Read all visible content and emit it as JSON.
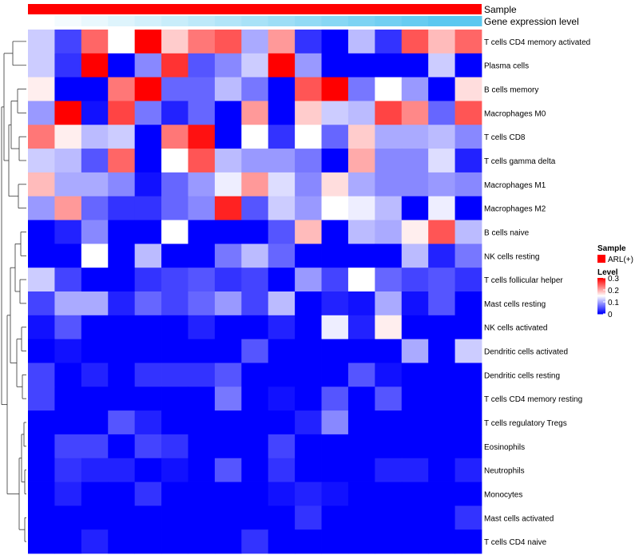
{
  "chart_data": {
    "type": "heatmap",
    "annotations": [
      {
        "name": "Sample",
        "color": "#ff0000"
      },
      {
        "name": "Gene expression level"
      }
    ],
    "annotation_gradient": [
      "#ffffff",
      "#5bc8f0"
    ],
    "rows": [
      "T cells CD4 memory activated",
      "Plasma cells",
      "B cells memory",
      "Macrophages M0",
      "T cells CD8",
      "T cells gamma delta",
      "Macrophages M1",
      "Macrophages M2",
      "B cells naive",
      "NK cells resting",
      "T cells follicular helper",
      "Mast cells resting",
      "NK cells activated",
      "Dendritic cells activated",
      "Dendritic cells resting",
      "T cells CD4 memory resting",
      "T cells regulatory  Tregs",
      "Eosinophils",
      "Neutrophils",
      "Monocytes",
      "Mast cells activated",
      "T cells CD4 naive"
    ],
    "values": [
      [
        0.12,
        0.04,
        0.24,
        0.15,
        0.32,
        0.18,
        0.23,
        0.25,
        0.1,
        0.21,
        0.03,
        0.0,
        0.11,
        0.03,
        0.25,
        0.19,
        0.24
      ],
      [
        0.12,
        0.03,
        0.32,
        0.0,
        0.08,
        0.27,
        0.05,
        0.08,
        0.12,
        0.32,
        0.09,
        0.0,
        0.0,
        0.0,
        0.0,
        0.12,
        0.0
      ],
      [
        0.16,
        0.0,
        0.0,
        0.23,
        0.32,
        0.06,
        0.06,
        0.11,
        0.07,
        0.0,
        0.25,
        0.32,
        0.07,
        0.15,
        0.09,
        0.0,
        0.17
      ],
      [
        0.09,
        0.32,
        0.01,
        0.26,
        0.07,
        0.02,
        0.06,
        0.0,
        0.21,
        0.0,
        0.18,
        0.12,
        0.11,
        0.26,
        0.22,
        0.06,
        0.25
      ],
      [
        0.23,
        0.16,
        0.11,
        0.12,
        0.0,
        0.23,
        0.29,
        0.0,
        0.15,
        0.03,
        0.15,
        0.06,
        0.18,
        0.1,
        0.1,
        0.11,
        0.08
      ],
      [
        0.12,
        0.11,
        0.05,
        0.24,
        0.0,
        0.15,
        0.25,
        0.11,
        0.09,
        0.09,
        0.07,
        0.0,
        0.2,
        0.08,
        0.08,
        0.13,
        0.02
      ],
      [
        0.19,
        0.1,
        0.1,
        0.08,
        0.01,
        0.06,
        0.09,
        0.14,
        0.21,
        0.13,
        0.08,
        0.17,
        0.1,
        0.08,
        0.08,
        0.09,
        0.08
      ],
      [
        0.09,
        0.21,
        0.06,
        0.03,
        0.03,
        0.06,
        0.08,
        0.28,
        0.05,
        0.12,
        0.09,
        0.15,
        0.14,
        0.11,
        0.0,
        0.14,
        0.0
      ],
      [
        0.0,
        0.02,
        0.08,
        0.0,
        0.0,
        0.15,
        0.0,
        0.0,
        0.0,
        0.05,
        0.19,
        0.0,
        0.11,
        0.1,
        0.16,
        0.25,
        0.11
      ],
      [
        0.0,
        0.0,
        0.15,
        0.0,
        0.11,
        0.0,
        0.0,
        0.07,
        0.11,
        0.06,
        0.0,
        0.0,
        0.0,
        0.0,
        0.11,
        0.02,
        0.07
      ],
      [
        0.12,
        0.04,
        0.0,
        0.0,
        0.03,
        0.04,
        0.05,
        0.03,
        0.04,
        0.0,
        0.09,
        0.04,
        0.15,
        0.06,
        0.04,
        0.05,
        0.03
      ],
      [
        0.04,
        0.1,
        0.1,
        0.02,
        0.06,
        0.04,
        0.06,
        0.09,
        0.04,
        0.11,
        0.0,
        0.02,
        0.01,
        0.1,
        0.01,
        0.05,
        0.0
      ],
      [
        0.01,
        0.05,
        0.0,
        0.0,
        0.0,
        0.0,
        0.02,
        0.0,
        0.0,
        0.02,
        0.0,
        0.14,
        0.02,
        0.16,
        0.0,
        0.0,
        0.0
      ],
      [
        0.0,
        0.01,
        0.0,
        0.0,
        0.0,
        0.0,
        0.0,
        0.0,
        0.05,
        0.0,
        0.0,
        0.0,
        0.0,
        0.0,
        0.1,
        0.0,
        0.12
      ],
      [
        0.04,
        0.0,
        0.02,
        0.0,
        0.03,
        0.03,
        0.03,
        0.05,
        0.0,
        0.0,
        0.0,
        0.0,
        0.05,
        0.01,
        0.0,
        0.0,
        0.0
      ],
      [
        0.04,
        0.0,
        0.0,
        0.0,
        0.0,
        0.0,
        0.0,
        0.07,
        0.0,
        0.01,
        0.0,
        0.05,
        0.0,
        0.05,
        0.0,
        0.0,
        0.0
      ],
      [
        0.0,
        0.0,
        0.0,
        0.05,
        0.02,
        0.0,
        0.0,
        0.0,
        0.0,
        0.0,
        0.02,
        0.08,
        0.0,
        0.0,
        0.0,
        0.0,
        0.0
      ],
      [
        0.0,
        0.04,
        0.04,
        0.0,
        0.04,
        0.03,
        0.0,
        0.0,
        0.0,
        0.04,
        0.0,
        0.0,
        0.0,
        0.0,
        0.0,
        0.0,
        0.0
      ],
      [
        0.0,
        0.03,
        0.02,
        0.02,
        0.0,
        0.01,
        0.0,
        0.05,
        0.0,
        0.03,
        0.0,
        0.0,
        0.0,
        0.02,
        0.02,
        0.0,
        0.02
      ],
      [
        0.0,
        0.02,
        0.0,
        0.0,
        0.03,
        0.0,
        0.0,
        0.0,
        0.0,
        0.01,
        0.02,
        0.01,
        0.0,
        0.0,
        0.0,
        0.0,
        0.0
      ],
      [
        0.0,
        0.0,
        0.0,
        0.0,
        0.0,
        0.0,
        0.0,
        0.0,
        0.0,
        0.0,
        0.03,
        0.0,
        0.0,
        0.0,
        0.0,
        0.0,
        0.03
      ],
      [
        0.0,
        0.0,
        0.02,
        0.0,
        0.0,
        0.0,
        0.0,
        0.0,
        0.03,
        0.0,
        0.0,
        0.0,
        0.0,
        0.0,
        0.0,
        0.0,
        0.0
      ]
    ],
    "legend": {
      "sample_title": "Sample",
      "sample_label": "ARL(+)",
      "level_title": "Level",
      "ticks": [
        "0.3",
        "0.2",
        "0.1",
        "0"
      ],
      "tick_values": [
        0.3,
        0.2,
        0.1,
        0.0
      ],
      "range": [
        0,
        0.3
      ]
    },
    "colors": {
      "low": "#0000ff",
      "mid": "#ffffff",
      "high": "#ff0000"
    }
  }
}
